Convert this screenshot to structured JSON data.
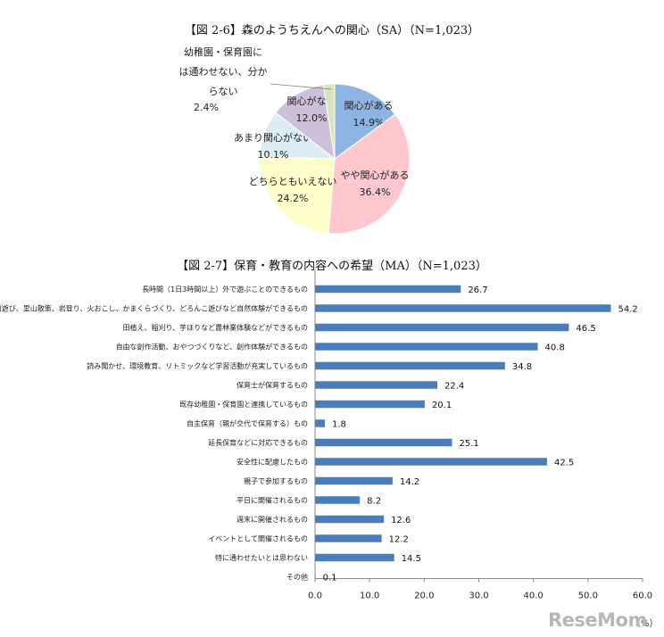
{
  "chart_data": [
    {
      "type": "pie",
      "title": "【図 2-6】森のようちえんへの関心（SA）（N=1,023）",
      "slices": [
        {
          "label": "関心がある",
          "value": 14.9,
          "value_label": "14.9%",
          "color": "#8eb4e3"
        },
        {
          "label": "やや関心がある",
          "value": 36.4,
          "value_label": "36.4%",
          "color": "#ffc7ce"
        },
        {
          "label": "どちらともいえない",
          "value": 24.2,
          "value_label": "24.2%",
          "color": "#ffffcc"
        },
        {
          "label": "あまり関心がない",
          "value": 10.1,
          "value_label": "10.1%",
          "color": "#dbeef4"
        },
        {
          "label": "関心がない",
          "value": 12.0,
          "value_label": "12.0%",
          "color": "#ccc0da"
        },
        {
          "label": "幼稚園・保育園には通わせない、分からない",
          "label_lines": [
            "幼稚園・保育園に",
            "は通わせない、分か",
            "らない"
          ],
          "value": 2.4,
          "value_label": "2.4%",
          "color": "#d7e4bd"
        }
      ]
    },
    {
      "type": "bar",
      "orientation": "horizontal",
      "title": "【図 2-7】保育・教育の内容への希望（MA）（N=1,023）",
      "categories": [
        "長時間（1日3時間以上）外で遊ぶことのできるもの",
        "川遊び、里山散策、岩登り、火おこし、かまくらづくり、どろんこ遊びなど自然体験ができるもの",
        "田植え、稲刈り、芋ほりなど農林業体験などができるもの",
        "自由な創作活動、おやつづくりなど、創作体験ができるもの",
        "読み聞かせ、環境教育、リトミックなど学習活動が充実しているもの",
        "保育士が保育するもの",
        "既存幼稚園・保育園と連携しているもの",
        "自主保育（親が交代で保育する）もの",
        "延長保育などに対応できるもの",
        "安全性に配慮したもの",
        "親子で参加するもの",
        "平日に開催されるもの",
        "週末に開催されるもの",
        "イベントとして開催されるもの",
        "特に通わせたいとは思わない",
        "その他"
      ],
      "values": [
        26.7,
        54.2,
        46.5,
        40.8,
        34.8,
        22.4,
        20.1,
        1.8,
        25.1,
        42.5,
        14.2,
        8.2,
        12.6,
        12.2,
        14.5,
        0.1
      ],
      "value_labels": [
        "26.7",
        "54.2",
        "46.5",
        "40.8",
        "34.8",
        "22.4",
        "20.1",
        "1.8",
        "25.1",
        "42.5",
        "14.2",
        "8.2",
        "12.6",
        "12.2",
        "14.5",
        "0.1"
      ],
      "xlim": [
        0,
        60
      ],
      "xticks": [
        "0.0",
        "10.0",
        "20.0",
        "30.0",
        "40.0",
        "50.0",
        "60.0"
      ],
      "xlabel": "（%）",
      "bar_color": "#4a7ebb"
    }
  ],
  "watermark": "ReseMom"
}
